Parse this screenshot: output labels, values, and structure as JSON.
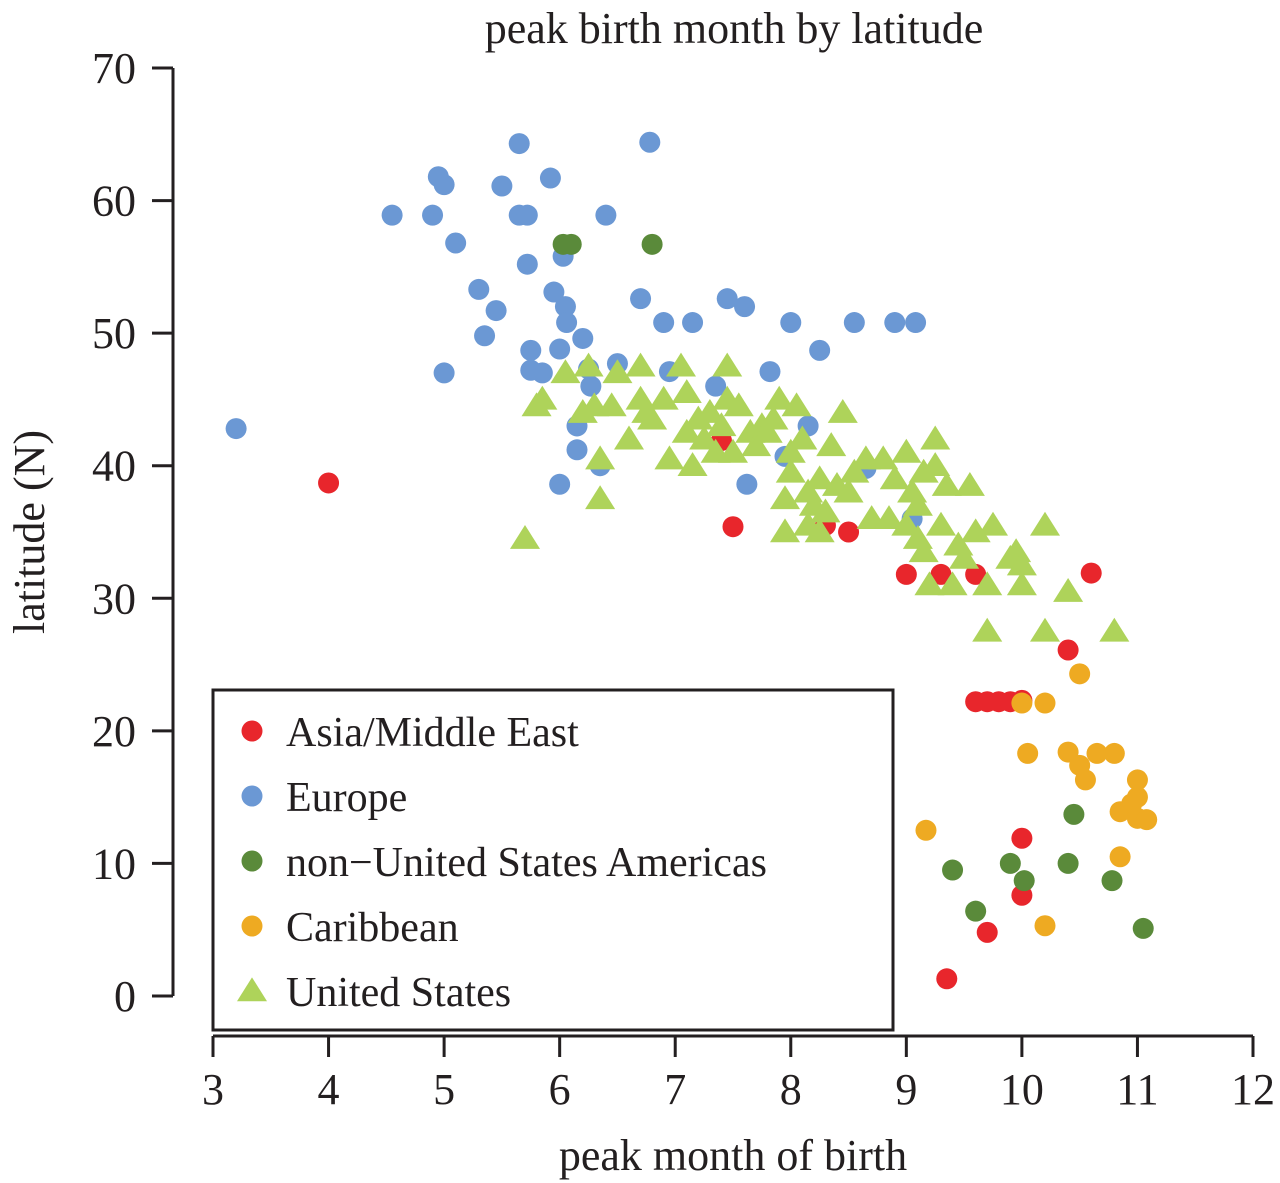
{
  "chart_data": {
    "type": "scatter",
    "title": "peak birth month by latitude",
    "xlabel": "peak month of birth",
    "ylabel": "latitude (N)",
    "xlim": [
      3,
      12
    ],
    "ylim": [
      0,
      70
    ],
    "xticks": [
      "3",
      "4",
      "5",
      "6",
      "7",
      "8",
      "9",
      "10",
      "11",
      "12"
    ],
    "yticks": [
      "0",
      "10",
      "20",
      "30",
      "40",
      "50",
      "60",
      "70"
    ],
    "legend_position": "bottom-left",
    "series": [
      {
        "name": "Asia/Middle East",
        "marker": "circle",
        "color": "#e8262c",
        "points": [
          [
            4.0,
            38.7
          ],
          [
            7.4,
            41.9
          ],
          [
            7.5,
            35.4
          ],
          [
            8.3,
            35.5
          ],
          [
            8.5,
            35.0
          ],
          [
            9.0,
            31.8
          ],
          [
            9.3,
            31.8
          ],
          [
            9.6,
            31.8
          ],
          [
            10.6,
            31.9
          ],
          [
            10.4,
            26.1
          ],
          [
            9.6,
            22.2
          ],
          [
            9.7,
            22.2
          ],
          [
            9.8,
            22.2
          ],
          [
            9.9,
            22.2
          ],
          [
            10.0,
            22.3
          ],
          [
            10.0,
            11.9
          ],
          [
            10.0,
            7.6
          ],
          [
            9.7,
            4.8
          ],
          [
            9.35,
            1.3
          ]
        ]
      },
      {
        "name": "Europe",
        "marker": "circle",
        "color": "#6b98d4",
        "points": [
          [
            3.2,
            42.8
          ],
          [
            4.55,
            58.9
          ],
          [
            4.9,
            58.9
          ],
          [
            4.95,
            61.8
          ],
          [
            5.0,
            61.2
          ],
          [
            5.0,
            47.0
          ],
          [
            5.1,
            56.8
          ],
          [
            5.3,
            53.3
          ],
          [
            5.35,
            49.8
          ],
          [
            5.45,
            51.7
          ],
          [
            5.5,
            61.1
          ],
          [
            5.65,
            64.3
          ],
          [
            5.65,
            58.9
          ],
          [
            5.72,
            58.9
          ],
          [
            5.72,
            55.2
          ],
          [
            5.75,
            48.7
          ],
          [
            5.75,
            47.2
          ],
          [
            5.85,
            47.0
          ],
          [
            5.92,
            61.7
          ],
          [
            5.95,
            53.1
          ],
          [
            6.0,
            48.8
          ],
          [
            6.0,
            38.6
          ],
          [
            6.03,
            55.8
          ],
          [
            6.05,
            52.0
          ],
          [
            6.06,
            50.8
          ],
          [
            6.15,
            43.0
          ],
          [
            6.15,
            41.2
          ],
          [
            6.2,
            49.6
          ],
          [
            6.25,
            47.3
          ],
          [
            6.27,
            46.0
          ],
          [
            6.35,
            40.0
          ],
          [
            6.4,
            58.9
          ],
          [
            6.5,
            47.7
          ],
          [
            6.7,
            52.6
          ],
          [
            6.78,
            64.4
          ],
          [
            6.9,
            50.8
          ],
          [
            6.95,
            47.1
          ],
          [
            7.15,
            50.8
          ],
          [
            7.35,
            46.0
          ],
          [
            7.45,
            52.6
          ],
          [
            7.6,
            52.0
          ],
          [
            7.62,
            38.6
          ],
          [
            7.82,
            47.1
          ],
          [
            7.95,
            40.7
          ],
          [
            8.0,
            50.8
          ],
          [
            8.15,
            43.0
          ],
          [
            8.25,
            48.7
          ],
          [
            8.55,
            50.8
          ],
          [
            8.65,
            39.8
          ],
          [
            8.9,
            50.8
          ],
          [
            9.08,
            50.8
          ],
          [
            9.05,
            36.0
          ]
        ]
      },
      {
        "name": "non−United States Americas",
        "marker": "circle",
        "color": "#5a8a3a",
        "points": [
          [
            6.03,
            56.7
          ],
          [
            6.1,
            56.7
          ],
          [
            6.8,
            56.7
          ],
          [
            10.45,
            13.7
          ],
          [
            9.4,
            9.5
          ],
          [
            9.9,
            10.0
          ],
          [
            10.02,
            8.7
          ],
          [
            10.4,
            10.0
          ],
          [
            10.78,
            8.7
          ],
          [
            9.6,
            6.4
          ],
          [
            11.05,
            5.1
          ]
        ]
      },
      {
        "name": "Caribbean",
        "marker": "circle",
        "color": "#eeaa22",
        "points": [
          [
            10.5,
            24.3
          ],
          [
            10.0,
            22.1
          ],
          [
            10.2,
            22.1
          ],
          [
            10.05,
            18.3
          ],
          [
            10.4,
            18.4
          ],
          [
            10.5,
            17.4
          ],
          [
            10.55,
            16.3
          ],
          [
            10.65,
            18.3
          ],
          [
            10.8,
            18.3
          ],
          [
            10.85,
            13.9
          ],
          [
            10.95,
            14.5
          ],
          [
            11.0,
            16.3
          ],
          [
            11.0,
            15.0
          ],
          [
            11.0,
            13.4
          ],
          [
            11.08,
            13.3
          ],
          [
            10.85,
            10.5
          ],
          [
            9.17,
            12.5
          ],
          [
            10.2,
            5.3
          ]
        ]
      },
      {
        "name": "United States",
        "marker": "triangle",
        "color": "#aed35a",
        "points": [
          [
            5.7,
            34.5
          ],
          [
            5.8,
            44.5
          ],
          [
            5.85,
            45.0
          ],
          [
            6.05,
            47.0
          ],
          [
            6.2,
            44.0
          ],
          [
            6.25,
            47.5
          ],
          [
            6.3,
            44.5
          ],
          [
            6.35,
            40.5
          ],
          [
            6.35,
            37.5
          ],
          [
            6.45,
            44.5
          ],
          [
            6.5,
            47.0
          ],
          [
            6.6,
            42.0
          ],
          [
            6.7,
            47.5
          ],
          [
            6.7,
            45.0
          ],
          [
            6.75,
            44.0
          ],
          [
            6.8,
            43.5
          ],
          [
            6.9,
            45.0
          ],
          [
            6.95,
            40.5
          ],
          [
            7.05,
            47.5
          ],
          [
            7.1,
            42.5
          ],
          [
            7.1,
            45.5
          ],
          [
            7.15,
            40.0
          ],
          [
            7.2,
            43.5
          ],
          [
            7.25,
            42.0
          ],
          [
            7.3,
            44.0
          ],
          [
            7.35,
            41.0
          ],
          [
            7.4,
            43.0
          ],
          [
            7.45,
            45.0
          ],
          [
            7.45,
            47.5
          ],
          [
            7.5,
            41.0
          ],
          [
            7.55,
            44.5
          ],
          [
            7.65,
            42.5
          ],
          [
            7.7,
            41.5
          ],
          [
            7.75,
            43.0
          ],
          [
            7.8,
            42.5
          ],
          [
            7.85,
            43.5
          ],
          [
            7.9,
            45.0
          ],
          [
            7.95,
            37.5
          ],
          [
            7.95,
            35.0
          ],
          [
            8.0,
            41.0
          ],
          [
            8.0,
            39.5
          ],
          [
            8.05,
            44.5
          ],
          [
            8.1,
            42.0
          ],
          [
            8.15,
            38.0
          ],
          [
            8.15,
            35.5
          ],
          [
            8.2,
            37.0
          ],
          [
            8.25,
            39.0
          ],
          [
            8.25,
            35.0
          ],
          [
            8.3,
            36.5
          ],
          [
            8.35,
            41.5
          ],
          [
            8.4,
            38.5
          ],
          [
            8.45,
            44.0
          ],
          [
            8.5,
            38.0
          ],
          [
            8.55,
            39.5
          ],
          [
            8.65,
            40.5
          ],
          [
            8.7,
            36.0
          ],
          [
            8.8,
            40.5
          ],
          [
            8.85,
            36.0
          ],
          [
            8.9,
            39.0
          ],
          [
            9.0,
            41.0
          ],
          [
            9.0,
            35.5
          ],
          [
            9.05,
            38.0
          ],
          [
            9.1,
            34.5
          ],
          [
            9.1,
            37.0
          ],
          [
            9.15,
            39.5
          ],
          [
            9.15,
            33.5
          ],
          [
            9.2,
            31.0
          ],
          [
            9.25,
            42.0
          ],
          [
            9.25,
            40.0
          ],
          [
            9.3,
            35.5
          ],
          [
            9.35,
            38.5
          ],
          [
            9.4,
            31.0
          ],
          [
            9.45,
            34.0
          ],
          [
            9.5,
            33.0
          ],
          [
            9.55,
            38.5
          ],
          [
            9.6,
            35.0
          ],
          [
            9.7,
            31.0
          ],
          [
            9.7,
            27.5
          ],
          [
            9.75,
            35.5
          ],
          [
            9.9,
            33.0
          ],
          [
            9.95,
            33.5
          ],
          [
            10.0,
            32.5
          ],
          [
            10.0,
            31.0
          ],
          [
            10.2,
            35.5
          ],
          [
            10.2,
            27.5
          ],
          [
            10.4,
            30.5
          ],
          [
            10.8,
            27.5
          ]
        ]
      }
    ]
  }
}
